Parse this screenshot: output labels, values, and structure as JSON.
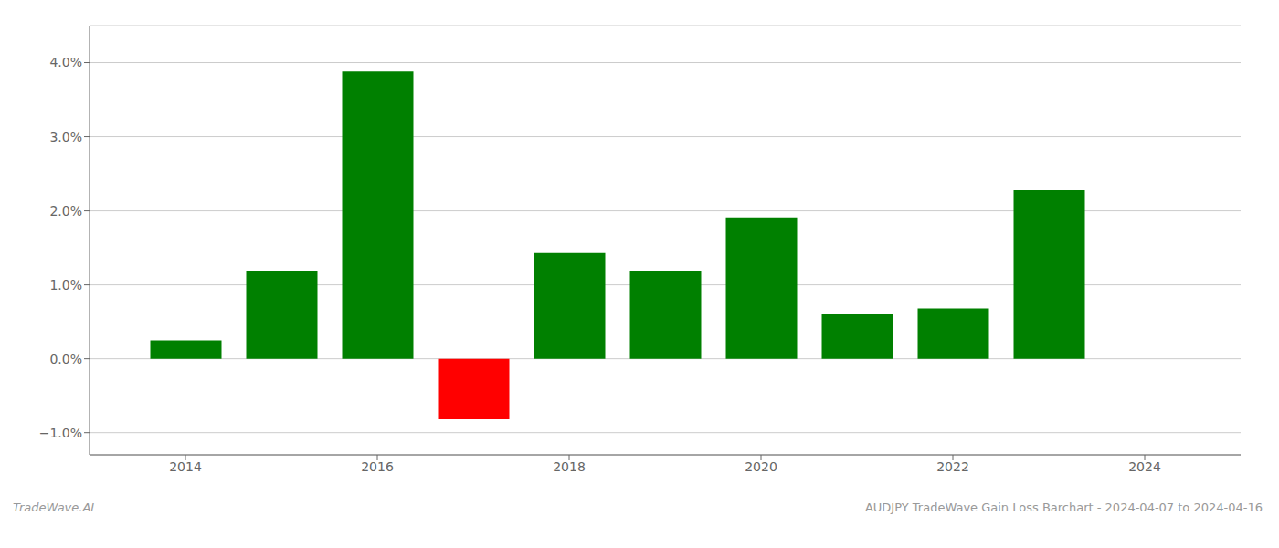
{
  "chart_data": {
    "type": "bar",
    "x": [
      2014,
      2015,
      2016,
      2017,
      2018,
      2019,
      2020,
      2021,
      2022,
      2023
    ],
    "values": [
      0.0025,
      0.0118,
      0.0388,
      -0.0082,
      0.0143,
      0.0118,
      0.019,
      0.006,
      0.0068,
      0.0228
    ],
    "colors": [
      "#008000",
      "#008000",
      "#008000",
      "#ff0000",
      "#008000",
      "#008000",
      "#008000",
      "#008000",
      "#008000",
      "#008000"
    ],
    "xlim": [
      2013.0,
      2025.0
    ],
    "xticks": [
      2014,
      2016,
      2018,
      2020,
      2022,
      2024
    ],
    "ylim": [
      -0.013,
      0.045
    ],
    "yticks": [
      {
        "value": -0.01,
        "label": "−1.0%"
      },
      {
        "value": 0.0,
        "label": "0.0%"
      },
      {
        "value": 0.01,
        "label": "1.0%"
      },
      {
        "value": 0.02,
        "label": "2.0%"
      },
      {
        "value": 0.03,
        "label": "3.0%"
      },
      {
        "value": 0.04,
        "label": "4.0%"
      }
    ],
    "grid": true,
    "annotations": [
      "TradeWave.AI",
      "AUDJPY TradeWave Gain Loss Barchart - 2024-04-07 to 2024-04-16"
    ]
  }
}
